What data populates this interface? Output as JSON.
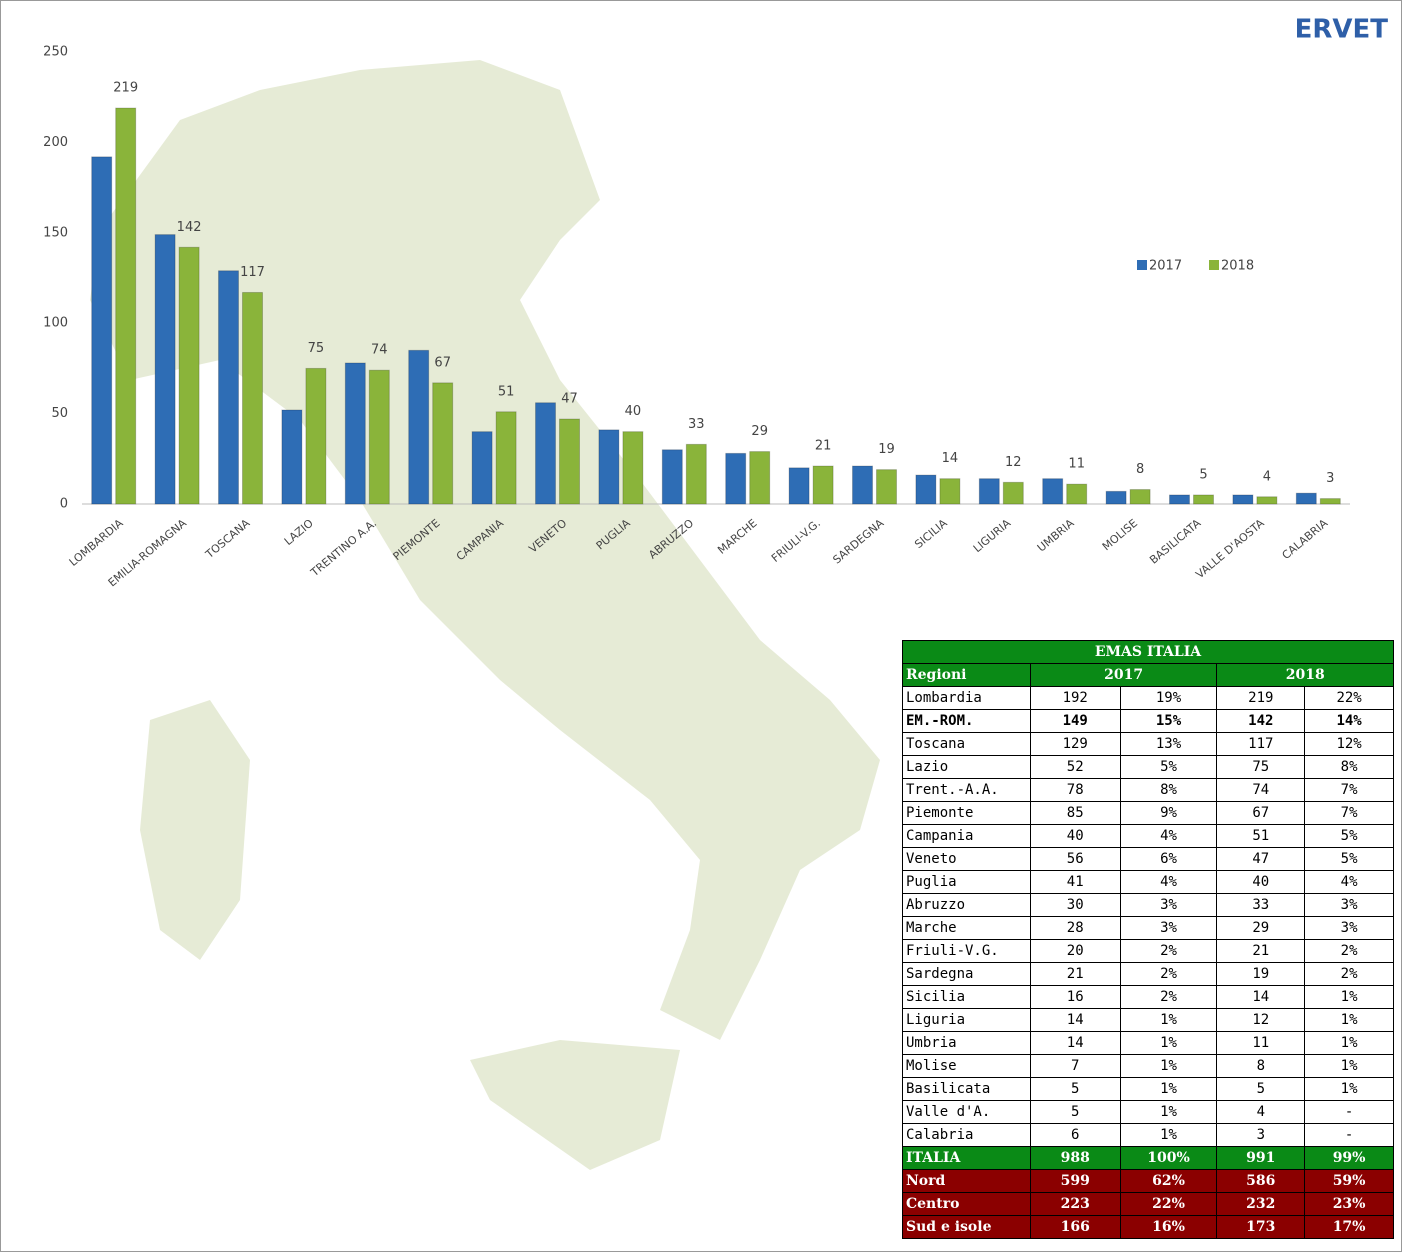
{
  "logo": "ERVET",
  "chart_data": {
    "type": "bar",
    "categories": [
      "LOMBARDIA",
      "EMILIA-ROMAGNA",
      "TOSCANA",
      "LAZIO",
      "TRENTINO A.A.",
      "PIEMONTE",
      "CAMPANIA",
      "VENETO",
      "PUGLIA",
      "ABRUZZO",
      "MARCHE",
      "FRIULI-V.G.",
      "SARDEGNA",
      "SICILIA",
      "LIGURIA",
      "UMBRIA",
      "MOLISE",
      "BASILICATA",
      "VALLE D'AOSTA",
      "CALABRIA"
    ],
    "series": [
      {
        "name": "2017",
        "color": "#2e6db5",
        "values": [
          192,
          149,
          129,
          52,
          78,
          85,
          40,
          56,
          41,
          30,
          28,
          20,
          21,
          16,
          14,
          14,
          7,
          5,
          5,
          6
        ]
      },
      {
        "name": "2018",
        "color": "#8ab43a",
        "values": [
          219,
          142,
          117,
          75,
          74,
          67,
          51,
          47,
          40,
          33,
          29,
          21,
          19,
          14,
          12,
          11,
          8,
          5,
          4,
          3
        ]
      }
    ],
    "ylim": [
      0,
      250
    ],
    "yticks": [
      0,
      50,
      100,
      150,
      200,
      250
    ],
    "grid": false,
    "legend": "right"
  },
  "table": {
    "title": "EMAS ITALIA",
    "header": [
      "Regioni",
      "2017",
      "2018"
    ],
    "rows": [
      [
        "Lombardia",
        192,
        "19%",
        219,
        "22%"
      ],
      [
        "EM.-ROM.",
        149,
        "15%",
        142,
        "14%"
      ],
      [
        "Toscana",
        129,
        "13%",
        117,
        "12%"
      ],
      [
        "Lazio",
        52,
        "5%",
        75,
        "8%"
      ],
      [
        "Trent.-A.A.",
        78,
        "8%",
        74,
        "7%"
      ],
      [
        "Piemonte",
        85,
        "9%",
        67,
        "7%"
      ],
      [
        "Campania",
        40,
        "4%",
        51,
        "5%"
      ],
      [
        "Veneto",
        56,
        "6%",
        47,
        "5%"
      ],
      [
        "Puglia",
        41,
        "4%",
        40,
        "4%"
      ],
      [
        "Abruzzo",
        30,
        "3%",
        33,
        "3%"
      ],
      [
        "Marche",
        28,
        "3%",
        29,
        "3%"
      ],
      [
        "Friuli-V.G.",
        20,
        "2%",
        21,
        "2%"
      ],
      [
        "Sardegna",
        21,
        "2%",
        19,
        "2%"
      ],
      [
        "Sicilia",
        16,
        "2%",
        14,
        "1%"
      ],
      [
        "Liguria",
        14,
        "1%",
        12,
        "1%"
      ],
      [
        "Umbria",
        14,
        "1%",
        11,
        "1%"
      ],
      [
        "Molise",
        7,
        "1%",
        8,
        "1%"
      ],
      [
        "Basilicata",
        5,
        "1%",
        5,
        "1%"
      ],
      [
        "Valle d'A.",
        5,
        "1%",
        4,
        "-"
      ],
      [
        "Calabria",
        6,
        "1%",
        3,
        "-"
      ]
    ],
    "total": [
      "ITALIA",
      988,
      "100%",
      991,
      "99%"
    ],
    "areas": [
      [
        "Nord",
        599,
        "62%",
        586,
        "59%"
      ],
      [
        "Centro",
        223,
        "22%",
        232,
        "23%"
      ],
      [
        "Sud e isole",
        166,
        "16%",
        173,
        "17%"
      ]
    ]
  }
}
